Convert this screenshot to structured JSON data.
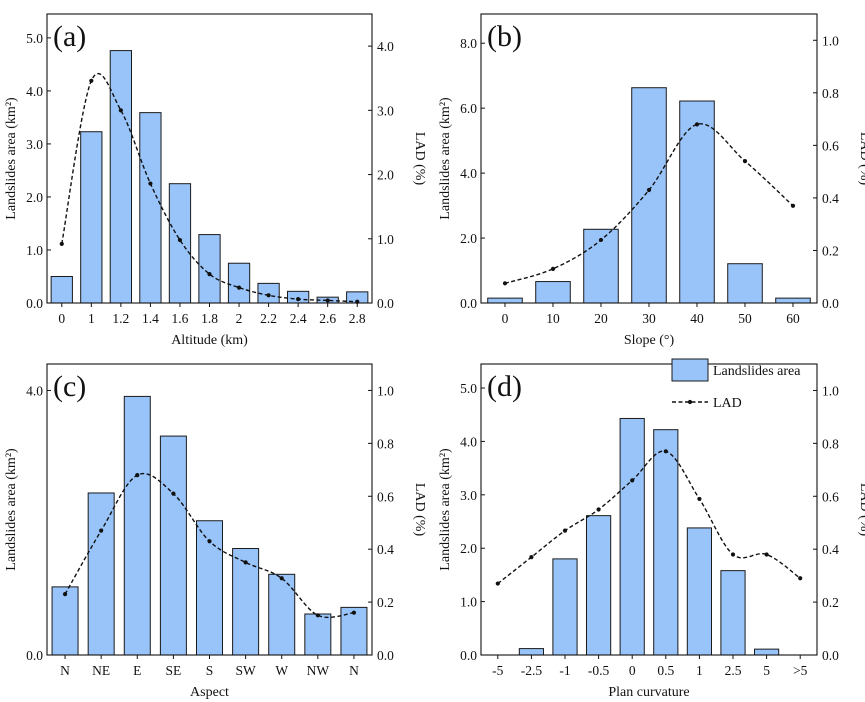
{
  "colors": {
    "bar_fill": "#99c4fa",
    "bar_stroke": "#1a1a1a",
    "line": "#111111",
    "axis": "#111111"
  },
  "legend": {
    "bar_label": "Landslides area",
    "line_label": "LAD"
  },
  "chart_data": [
    {
      "type": "bar",
      "panel": "(a)",
      "xlabel": "Altitude (km)",
      "ylabel": "Landslides area (km²)",
      "y2label": "LAD (%)",
      "categories": [
        "0",
        "1",
        "1.2",
        "1.4",
        "1.6",
        "1.8",
        "2",
        "2.2",
        "2.4",
        "2.6",
        "2.8"
      ],
      "ylim": [
        0,
        5.45
      ],
      "yticks": [
        0,
        1,
        2,
        3,
        4,
        5
      ],
      "ytick_labels": [
        "0.0",
        "1.0",
        "2.0",
        "3.0",
        "4.0",
        "5.0"
      ],
      "y2lim": [
        0,
        4.5
      ],
      "y2ticks": [
        0,
        1,
        2,
        3,
        4
      ],
      "y2tick_labels": [
        "0.0",
        "1.0",
        "2.0",
        "3.0",
        "4.0"
      ],
      "series": [
        {
          "name": "Landslides area",
          "axis": "left",
          "values": [
            0.5,
            3.23,
            4.76,
            3.59,
            2.25,
            1.29,
            0.75,
            0.37,
            0.22,
            0.11,
            0.21
          ]
        },
        {
          "name": "LAD",
          "axis": "right",
          "values": [
            0.92,
            3.46,
            3.0,
            1.86,
            0.98,
            0.45,
            0.24,
            0.12,
            0.06,
            0.04,
            0.02
          ]
        }
      ],
      "legend": false
    },
    {
      "type": "bar",
      "panel": "(b)",
      "xlabel": "Slope (°)",
      "ylabel": "Landslides area (km²)",
      "y2label": "LAD (%)",
      "categories": [
        "0",
        "10",
        "20",
        "30",
        "40",
        "50",
        "60"
      ],
      "ylim": [
        0,
        8.9
      ],
      "yticks": [
        0,
        2,
        4,
        6,
        8
      ],
      "ytick_labels": [
        "0.0",
        "2.0",
        "4.0",
        "6.0",
        "8.0"
      ],
      "y2lim": [
        0,
        1.1
      ],
      "y2ticks": [
        0,
        0.2,
        0.4,
        0.6,
        0.8,
        1.0
      ],
      "y2tick_labels": [
        "0.0",
        "0.2",
        "0.4",
        "0.6",
        "0.8",
        "1.0"
      ],
      "series": [
        {
          "name": "Landslides area",
          "axis": "left",
          "values": [
            0.15,
            0.66,
            2.27,
            6.63,
            6.22,
            1.21,
            0.15
          ]
        },
        {
          "name": "LAD",
          "axis": "right",
          "values": [
            0.075,
            0.13,
            0.24,
            0.43,
            0.68,
            0.54,
            0.37
          ]
        }
      ],
      "legend": false
    },
    {
      "type": "bar",
      "panel": "(c)",
      "xlabel": "Aspect",
      "ylabel": "Landslides area (km²)",
      "y2label": "LAD (%)",
      "categories": [
        "N",
        "NE",
        "E",
        "SE",
        "S",
        "SW",
        "W",
        "NW",
        "N"
      ],
      "ylim": [
        0,
        4.4
      ],
      "yticks": [
        0,
        4
      ],
      "ytick_labels": [
        "0.0",
        "4.0"
      ],
      "y2lim": [
        0,
        1.1
      ],
      "y2ticks": [
        0,
        0.2,
        0.4,
        0.6,
        0.8,
        1.0
      ],
      "y2tick_labels": [
        "0.0",
        "0.2",
        "0.4",
        "0.6",
        "0.8",
        "1.0"
      ],
      "series": [
        {
          "name": "Landslides area",
          "axis": "left",
          "values": [
            1.03,
            2.45,
            3.91,
            3.31,
            2.03,
            1.61,
            1.22,
            0.62,
            0.72
          ]
        },
        {
          "name": "LAD",
          "axis": "right",
          "values": [
            0.23,
            0.47,
            0.68,
            0.61,
            0.43,
            0.35,
            0.29,
            0.15,
            0.16
          ]
        }
      ],
      "legend": false
    },
    {
      "type": "bar",
      "panel": "(d)",
      "xlabel": "Plan curvature",
      "ylabel": "Landslides area (km²)",
      "y2label": "LAD (%)",
      "categories": [
        "-5",
        "-2.5",
        "-1",
        "-0.5",
        "0",
        "0.5",
        "1",
        "2.5",
        "5",
        ">5"
      ],
      "ylim": [
        0,
        5.45
      ],
      "yticks": [
        0,
        1,
        2,
        3,
        4,
        5
      ],
      "ytick_labels": [
        "0.0",
        "1.0",
        "2.0",
        "3.0",
        "4.0",
        "5.0"
      ],
      "y2lim": [
        0,
        1.1
      ],
      "y2ticks": [
        0,
        0.2,
        0.4,
        0.6,
        0.8,
        1.0
      ],
      "y2tick_labels": [
        "0.0",
        "0.2",
        "0.4",
        "0.6",
        "0.8",
        "1.0"
      ],
      "series": [
        {
          "name": "Landslides area",
          "axis": "left",
          "values": [
            0.0,
            0.12,
            1.8,
            2.61,
            4.43,
            4.22,
            2.38,
            1.58,
            0.11,
            0.0
          ]
        },
        {
          "name": "LAD",
          "axis": "right",
          "values": [
            0.27,
            0.37,
            0.47,
            0.55,
            0.66,
            0.77,
            0.59,
            0.38,
            0.38,
            0.29
          ]
        }
      ],
      "legend": true
    }
  ]
}
